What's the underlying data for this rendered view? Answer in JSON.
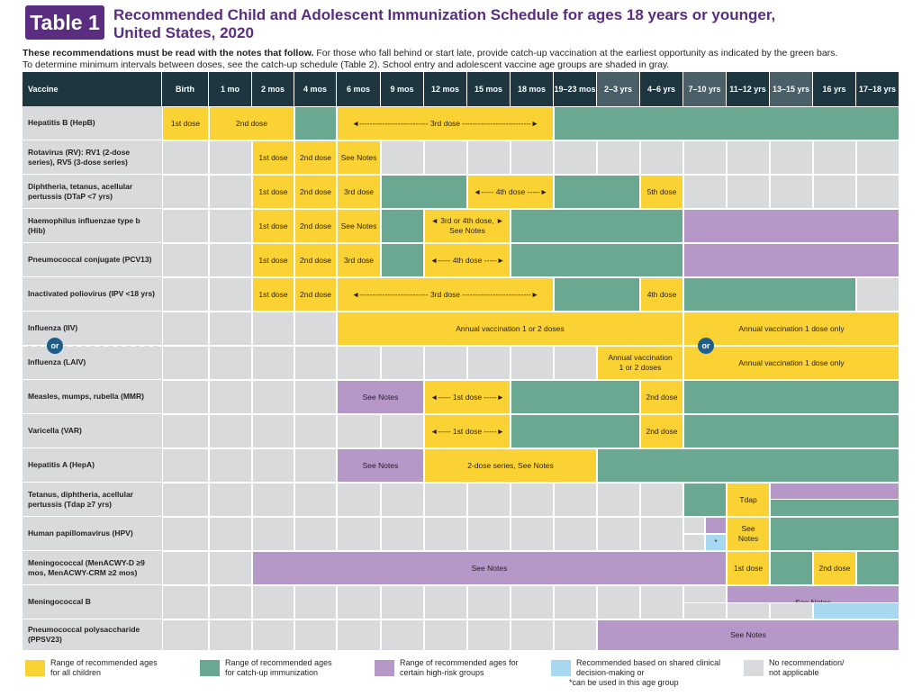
{
  "header": {
    "badge": "Table 1",
    "title_line1": "Recommended Child and Adolescent Immunization Schedule for ages 18 years or younger,",
    "title_line2": "United States, 2020",
    "intro_bold": "These recommendations must be read with the notes that follow.",
    "intro_rest": " For those who fall behind or start late, provide catch-up vaccination at the earliest opportunity as indicated by the green bars.",
    "intro_line2": "To determine minimum intervals between doses, see the catch-up schedule (Table 2). School entry and adolescent vaccine age groups are shaded in gray."
  },
  "colors": {
    "yellow": "#fbd234",
    "green": "#6aa892",
    "purple": "#b598c8",
    "blue": "#a8d8ef",
    "gray": "#d9dadb",
    "header": "#1d3640"
  },
  "columns": [
    "Vaccine",
    "Birth",
    "1 mo",
    "2 mos",
    "4 mos",
    "6 mos",
    "9 mos",
    "12 mos",
    "15 mos",
    "18 mos",
    "19–23 mos",
    "2–3 yrs",
    "4–6 yrs",
    "7–10 yrs",
    "11–12 yrs",
    "13–15 yrs",
    "16 yrs",
    "17–18 yrs"
  ],
  "shaded_columns": [
    11,
    13,
    15
  ],
  "rows": [
    {
      "name": "Hepatitis B (HepB)",
      "spans": [
        {
          "c": 0,
          "n": 1,
          "k": "y",
          "t": "1st dose"
        },
        {
          "c": 1,
          "n": 2,
          "k": "y",
          "t": "2nd dose"
        },
        {
          "c": 3,
          "n": 1,
          "k": "g",
          "t": ""
        },
        {
          "c": 4,
          "n": 5,
          "k": "y",
          "t": "◄--------------------------- 3rd dose ---------------------------►"
        },
        {
          "c": 9,
          "n": 8,
          "k": "g",
          "t": ""
        }
      ]
    },
    {
      "name": "Rotavirus (RV): RV1 (2-dose series), RV5 (3-dose series)",
      "spans": [
        {
          "c": 0,
          "n": 1,
          "k": "n"
        },
        {
          "c": 1,
          "n": 1,
          "k": "n"
        },
        {
          "c": 2,
          "n": 1,
          "k": "y",
          "t": "1st dose"
        },
        {
          "c": 3,
          "n": 1,
          "k": "y",
          "t": "2nd dose"
        },
        {
          "c": 4,
          "n": 1,
          "k": "y",
          "t": "See Notes"
        },
        {
          "c": 5,
          "n": 1,
          "k": "n"
        },
        {
          "c": 6,
          "n": 1,
          "k": "n"
        },
        {
          "c": 7,
          "n": 1,
          "k": "n"
        },
        {
          "c": 8,
          "n": 1,
          "k": "n"
        },
        {
          "c": 9,
          "n": 1,
          "k": "n"
        },
        {
          "c": 10,
          "n": 1,
          "k": "n"
        },
        {
          "c": 11,
          "n": 1,
          "k": "n"
        },
        {
          "c": 12,
          "n": 1,
          "k": "n"
        },
        {
          "c": 13,
          "n": 1,
          "k": "n"
        },
        {
          "c": 14,
          "n": 1,
          "k": "n"
        },
        {
          "c": 15,
          "n": 1,
          "k": "n"
        },
        {
          "c": 16,
          "n": 1,
          "k": "n"
        }
      ]
    },
    {
      "name": "Diphtheria, tetanus, acellular pertussis (DTaP <7 yrs)",
      "spans": [
        {
          "c": 0,
          "n": 1,
          "k": "n"
        },
        {
          "c": 1,
          "n": 1,
          "k": "n"
        },
        {
          "c": 2,
          "n": 1,
          "k": "y",
          "t": "1st dose"
        },
        {
          "c": 3,
          "n": 1,
          "k": "y",
          "t": "2nd dose"
        },
        {
          "c": 4,
          "n": 1,
          "k": "y",
          "t": "3rd dose"
        },
        {
          "c": 5,
          "n": 2,
          "k": "g"
        },
        {
          "c": 7,
          "n": 2,
          "k": "y",
          "t": "◄----- 4th dose -----►"
        },
        {
          "c": 9,
          "n": 2,
          "k": "g"
        },
        {
          "c": 11,
          "n": 1,
          "k": "y",
          "t": "5th dose"
        },
        {
          "c": 12,
          "n": 1,
          "k": "n"
        },
        {
          "c": 13,
          "n": 1,
          "k": "n"
        },
        {
          "c": 14,
          "n": 1,
          "k": "n"
        },
        {
          "c": 15,
          "n": 1,
          "k": "n"
        },
        {
          "c": 16,
          "n": 1,
          "k": "n"
        }
      ]
    },
    {
      "name": "Haemophilus influenzae type b (Hib)",
      "spans": [
        {
          "c": 0,
          "n": 1,
          "k": "n"
        },
        {
          "c": 1,
          "n": 1,
          "k": "n"
        },
        {
          "c": 2,
          "n": 1,
          "k": "y",
          "t": "1st dose"
        },
        {
          "c": 3,
          "n": 1,
          "k": "y",
          "t": "2nd dose"
        },
        {
          "c": 4,
          "n": 1,
          "k": "y",
          "t": "See Notes"
        },
        {
          "c": 5,
          "n": 1,
          "k": "g"
        },
        {
          "c": 6,
          "n": 2,
          "k": "y",
          "t": "◄ 3rd or 4th dose, ►\nSee Notes"
        },
        {
          "c": 8,
          "n": 4,
          "k": "g"
        },
        {
          "c": 12,
          "n": 5,
          "k": "p"
        }
      ]
    },
    {
      "name": "Pneumococcal conjugate (PCV13)",
      "spans": [
        {
          "c": 0,
          "n": 1,
          "k": "n"
        },
        {
          "c": 1,
          "n": 1,
          "k": "n"
        },
        {
          "c": 2,
          "n": 1,
          "k": "y",
          "t": "1st dose"
        },
        {
          "c": 3,
          "n": 1,
          "k": "y",
          "t": "2nd dose"
        },
        {
          "c": 4,
          "n": 1,
          "k": "y",
          "t": "3rd dose"
        },
        {
          "c": 5,
          "n": 1,
          "k": "g"
        },
        {
          "c": 6,
          "n": 2,
          "k": "y",
          "t": "◄----- 4th dose -----►"
        },
        {
          "c": 8,
          "n": 4,
          "k": "g"
        },
        {
          "c": 12,
          "n": 5,
          "k": "p"
        }
      ]
    },
    {
      "name": "Inactivated poliovirus (IPV <18 yrs)",
      "spans": [
        {
          "c": 0,
          "n": 1,
          "k": "n"
        },
        {
          "c": 1,
          "n": 1,
          "k": "n"
        },
        {
          "c": 2,
          "n": 1,
          "k": "y",
          "t": "1st dose"
        },
        {
          "c": 3,
          "n": 1,
          "k": "y",
          "t": "2nd dose"
        },
        {
          "c": 4,
          "n": 5,
          "k": "y",
          "t": "◄--------------------------- 3rd dose ---------------------------►"
        },
        {
          "c": 9,
          "n": 2,
          "k": "g"
        },
        {
          "c": 11,
          "n": 1,
          "k": "y",
          "t": "4th dose"
        },
        {
          "c": 12,
          "n": 4,
          "k": "g"
        },
        {
          "c": 16,
          "n": 1,
          "k": "n"
        }
      ]
    },
    {
      "name": "Influenza (IIV)",
      "spans": [
        {
          "c": 0,
          "n": 1,
          "k": "n"
        },
        {
          "c": 1,
          "n": 1,
          "k": "n"
        },
        {
          "c": 2,
          "n": 1,
          "k": "n"
        },
        {
          "c": 3,
          "n": 1,
          "k": "n"
        },
        {
          "c": 4,
          "n": 8,
          "k": "y",
          "t": "Annual vaccination 1 or 2 doses"
        },
        {
          "c": 12,
          "n": 5,
          "k": "y",
          "t": "Annual vaccination 1 dose only"
        }
      ]
    },
    {
      "name": "Influenza (LAIV)",
      "spans": [
        {
          "c": 0,
          "n": 1,
          "k": "n"
        },
        {
          "c": 1,
          "n": 1,
          "k": "n"
        },
        {
          "c": 2,
          "n": 1,
          "k": "n"
        },
        {
          "c": 3,
          "n": 1,
          "k": "n"
        },
        {
          "c": 4,
          "n": 1,
          "k": "n"
        },
        {
          "c": 5,
          "n": 1,
          "k": "n"
        },
        {
          "c": 6,
          "n": 1,
          "k": "n"
        },
        {
          "c": 7,
          "n": 1,
          "k": "n"
        },
        {
          "c": 8,
          "n": 1,
          "k": "n"
        },
        {
          "c": 9,
          "n": 1,
          "k": "n"
        },
        {
          "c": 10,
          "n": 2,
          "k": "y",
          "t": "Annual vaccination\n1 or 2 doses"
        },
        {
          "c": 12,
          "n": 5,
          "k": "y",
          "t": "Annual vaccination 1 dose only"
        }
      ]
    },
    {
      "name": "Measles, mumps, rubella (MMR)",
      "spans": [
        {
          "c": 0,
          "n": 1,
          "k": "n"
        },
        {
          "c": 1,
          "n": 1,
          "k": "n"
        },
        {
          "c": 2,
          "n": 1,
          "k": "n"
        },
        {
          "c": 3,
          "n": 1,
          "k": "n"
        },
        {
          "c": 4,
          "n": 2,
          "k": "p",
          "t": "See Notes"
        },
        {
          "c": 6,
          "n": 2,
          "k": "y",
          "t": "◄----- 1st dose -----►"
        },
        {
          "c": 8,
          "n": 3,
          "k": "g"
        },
        {
          "c": 11,
          "n": 1,
          "k": "y",
          "t": "2nd dose"
        },
        {
          "c": 12,
          "n": 5,
          "k": "g"
        }
      ]
    },
    {
      "name": "Varicella (VAR)",
      "spans": [
        {
          "c": 0,
          "n": 1,
          "k": "n"
        },
        {
          "c": 1,
          "n": 1,
          "k": "n"
        },
        {
          "c": 2,
          "n": 1,
          "k": "n"
        },
        {
          "c": 3,
          "n": 1,
          "k": "n"
        },
        {
          "c": 4,
          "n": 1,
          "k": "n"
        },
        {
          "c": 5,
          "n": 1,
          "k": "n"
        },
        {
          "c": 6,
          "n": 2,
          "k": "y",
          "t": "◄----- 1st dose -----►"
        },
        {
          "c": 8,
          "n": 3,
          "k": "g"
        },
        {
          "c": 11,
          "n": 1,
          "k": "y",
          "t": "2nd dose"
        },
        {
          "c": 12,
          "n": 5,
          "k": "g"
        }
      ]
    },
    {
      "name": "Hepatitis A (HepA)",
      "spans": [
        {
          "c": 0,
          "n": 1,
          "k": "n"
        },
        {
          "c": 1,
          "n": 1,
          "k": "n"
        },
        {
          "c": 2,
          "n": 1,
          "k": "n"
        },
        {
          "c": 3,
          "n": 1,
          "k": "n"
        },
        {
          "c": 4,
          "n": 2,
          "k": "p",
          "t": "See Notes"
        },
        {
          "c": 6,
          "n": 4,
          "k": "y",
          "t": "2-dose series, See Notes"
        },
        {
          "c": 10,
          "n": 7,
          "k": "g"
        }
      ]
    },
    {
      "name": "Tetanus, diphtheria, acellular pertussis (Tdap ≥7 yrs)",
      "spans": [
        {
          "c": 0,
          "n": 1,
          "k": "n"
        },
        {
          "c": 1,
          "n": 1,
          "k": "n"
        },
        {
          "c": 2,
          "n": 1,
          "k": "n"
        },
        {
          "c": 3,
          "n": 1,
          "k": "n"
        },
        {
          "c": 4,
          "n": 1,
          "k": "n"
        },
        {
          "c": 5,
          "n": 1,
          "k": "n"
        },
        {
          "c": 6,
          "n": 1,
          "k": "n"
        },
        {
          "c": 7,
          "n": 1,
          "k": "n"
        },
        {
          "c": 8,
          "n": 1,
          "k": "n"
        },
        {
          "c": 9,
          "n": 1,
          "k": "n"
        },
        {
          "c": 10,
          "n": 1,
          "k": "n"
        },
        {
          "c": 11,
          "n": 1,
          "k": "n"
        },
        {
          "c": 12,
          "n": 1,
          "k": "g"
        },
        {
          "c": 13,
          "n": 1,
          "k": "y",
          "t": "Tdap"
        },
        {
          "c": 14,
          "n": 3,
          "k": "g"
        }
      ]
    },
    {
      "name": "Human papillomavirus (HPV)",
      "spans": [
        {
          "c": 0,
          "n": 1,
          "k": "n"
        },
        {
          "c": 1,
          "n": 1,
          "k": "n"
        },
        {
          "c": 2,
          "n": 1,
          "k": "n"
        },
        {
          "c": 3,
          "n": 1,
          "k": "n"
        },
        {
          "c": 4,
          "n": 1,
          "k": "n"
        },
        {
          "c": 5,
          "n": 1,
          "k": "n"
        },
        {
          "c": 6,
          "n": 1,
          "k": "n"
        },
        {
          "c": 7,
          "n": 1,
          "k": "n"
        },
        {
          "c": 8,
          "n": 1,
          "k": "n"
        },
        {
          "c": 9,
          "n": 1,
          "k": "n"
        },
        {
          "c": 10,
          "n": 1,
          "k": "n"
        },
        {
          "c": 11,
          "n": 1,
          "k": "n"
        },
        {
          "c": 12,
          "n": 1,
          "k": "n"
        },
        {
          "c": 13,
          "n": 1,
          "k": "y",
          "t": "See\nNotes"
        },
        {
          "c": 14,
          "n": 3,
          "k": "g"
        }
      ]
    },
    {
      "name": "Meningococcal (MenACWY-D ≥9 mos, MenACWY-CRM ≥2 mos)",
      "spans": [
        {
          "c": 0,
          "n": 1,
          "k": "n"
        },
        {
          "c": 1,
          "n": 1,
          "k": "n"
        },
        {
          "c": 2,
          "n": 11,
          "k": "p",
          "t": "See Notes"
        },
        {
          "c": 13,
          "n": 1,
          "k": "y",
          "t": "1st dose"
        },
        {
          "c": 14,
          "n": 1,
          "k": "g"
        },
        {
          "c": 15,
          "n": 1,
          "k": "y",
          "t": "2nd dose"
        },
        {
          "c": 16,
          "n": 1,
          "k": "g"
        }
      ]
    },
    {
      "name": "Meningococcal B",
      "spans": [
        {
          "c": 0,
          "n": 1,
          "k": "n"
        },
        {
          "c": 1,
          "n": 1,
          "k": "n"
        },
        {
          "c": 2,
          "n": 1,
          "k": "n"
        },
        {
          "c": 3,
          "n": 1,
          "k": "n"
        },
        {
          "c": 4,
          "n": 1,
          "k": "n"
        },
        {
          "c": 5,
          "n": 1,
          "k": "n"
        },
        {
          "c": 6,
          "n": 1,
          "k": "n"
        },
        {
          "c": 7,
          "n": 1,
          "k": "n"
        },
        {
          "c": 8,
          "n": 1,
          "k": "n"
        },
        {
          "c": 9,
          "n": 1,
          "k": "n"
        },
        {
          "c": 10,
          "n": 1,
          "k": "n"
        },
        {
          "c": 11,
          "n": 1,
          "k": "n"
        },
        {
          "c": 12,
          "n": 1,
          "k": "n"
        },
        {
          "c": 13,
          "n": 4,
          "k": "p",
          "t": "See Notes"
        }
      ]
    },
    {
      "name": "Pneumococcal polysaccharide (PPSV23)",
      "spans": [
        {
          "c": 0,
          "n": 1,
          "k": "n"
        },
        {
          "c": 1,
          "n": 1,
          "k": "n"
        },
        {
          "c": 2,
          "n": 1,
          "k": "n"
        },
        {
          "c": 3,
          "n": 1,
          "k": "n"
        },
        {
          "c": 4,
          "n": 1,
          "k": "n"
        },
        {
          "c": 5,
          "n": 1,
          "k": "n"
        },
        {
          "c": 6,
          "n": 1,
          "k": "n"
        },
        {
          "c": 7,
          "n": 1,
          "k": "n"
        },
        {
          "c": 8,
          "n": 1,
          "k": "n"
        },
        {
          "c": 9,
          "n": 1,
          "k": "n"
        },
        {
          "c": 10,
          "n": 7,
          "k": "p",
          "t": "See Notes"
        }
      ]
    }
  ],
  "or_label": "or",
  "hpv_star": "*",
  "legend": [
    {
      "k": "y",
      "line1": "Range of recommended ages",
      "line2": "for all children"
    },
    {
      "k": "g",
      "line1": "Range of recommended ages",
      "line2": "for catch-up immunization"
    },
    {
      "k": "p",
      "line1": "Range of recommended ages for",
      "line2": "certain high-risk groups"
    },
    {
      "k": "b",
      "line1": "Recommended based on shared clinical",
      "line2": "decision-making or",
      "line3": "*can be used in this age group"
    },
    {
      "k": "n",
      "line1": "No recommendation/",
      "line2": "not applicable"
    }
  ]
}
